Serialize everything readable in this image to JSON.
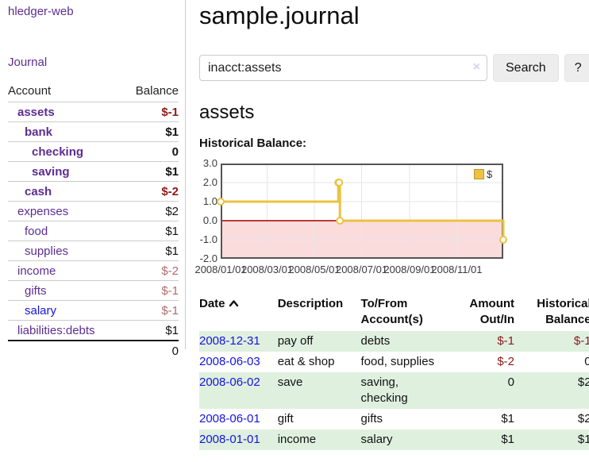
{
  "app": {
    "title": "hledger-web"
  },
  "sidebar": {
    "journal_link": "Journal",
    "accounts_table": {
      "header_account": "Account",
      "header_balance": "Balance",
      "rows": [
        {
          "label": "assets",
          "depth": 1,
          "matched": true,
          "balance": "$-1",
          "negative_strong": true
        },
        {
          "label": "bank",
          "depth": 2,
          "matched": true,
          "balance": "$1"
        },
        {
          "label": "checking",
          "depth": 3,
          "matched": true,
          "balance": "0"
        },
        {
          "label": "saving",
          "depth": 3,
          "matched": true,
          "balance": "$1"
        },
        {
          "label": "cash",
          "depth": 2,
          "matched": true,
          "balance": "$-2",
          "negative_strong": true
        },
        {
          "label": "expenses",
          "depth": 1,
          "balance": "$2"
        },
        {
          "label": "food",
          "depth": 2,
          "balance": "$1"
        },
        {
          "label": "supplies",
          "depth": 2,
          "balance": "$1"
        },
        {
          "label": "income",
          "depth": 1,
          "balance": "$-2",
          "negative_muted": true
        },
        {
          "label": "gifts",
          "depth": 2,
          "balance": "$-1",
          "negative_muted": true
        },
        {
          "label": "salary",
          "depth": 2,
          "balance": "$-1",
          "negative_muted": true,
          "link_blue": true
        },
        {
          "label": "liabilities:debts",
          "depth": 1,
          "balance": "$1"
        }
      ],
      "total": "0"
    }
  },
  "main": {
    "title": "sample.journal",
    "search": {
      "value": "inacct:assets",
      "clear_icon": "×",
      "button_label": "Search",
      "help_label": "?"
    },
    "account_heading": "assets",
    "chart_label": "Historical Balance:"
  },
  "chart_data": {
    "type": "line",
    "step": true,
    "title": "Historical Balance:",
    "ylim": [
      -2,
      3
    ],
    "x_span_days": 365,
    "yticks": [
      {
        "label": "3.0",
        "value": 3
      },
      {
        "label": "2.0",
        "value": 2
      },
      {
        "label": "1.0",
        "value": 1
      },
      {
        "label": "0.0",
        "value": 0
      },
      {
        "label": "-1.0",
        "value": -1
      },
      {
        "label": "-2.0",
        "value": -2
      }
    ],
    "xticks": [
      {
        "label": "2008/01/01",
        "day": 0
      },
      {
        "label": "2008/03/01",
        "day": 60
      },
      {
        "label": "2008/05/01",
        "day": 121
      },
      {
        "label": "2008/07/01",
        "day": 182
      },
      {
        "label": "2008/09/01",
        "day": 244
      },
      {
        "label": "2008/11/01",
        "day": 305
      }
    ],
    "series": [
      {
        "name": "$",
        "color": "#edc240",
        "points": [
          {
            "date": "2008-01-01",
            "day": 0,
            "value": 1
          },
          {
            "date": "2008-06-01",
            "day": 152,
            "value": 2
          },
          {
            "date": "2008-06-02",
            "day": 153,
            "value": 2
          },
          {
            "date": "2008-06-03",
            "day": 154,
            "value": 0
          },
          {
            "date": "2008-12-31",
            "day": 365,
            "value": -1
          }
        ]
      }
    ],
    "grid_on": true,
    "grid_color": "#e6e6e6",
    "zero_line_color": "#a40000",
    "negative_fill": "#fbdcdc",
    "plot_border_color": "#555555",
    "legend_position": "top-right"
  },
  "register": {
    "headers": {
      "date": "Date",
      "description": "Description",
      "accounts": "To/From\nAccount(s)",
      "amount": "Amount\nOut/In",
      "balance": "Historical\nBalance"
    },
    "rows": [
      {
        "date": "2008-12-31",
        "description": "pay off",
        "accounts": "debts",
        "amount": "$-1",
        "amount_negative": true,
        "balance": "$-1",
        "balance_negative": true
      },
      {
        "date": "2008-06-03",
        "description": "eat & shop",
        "accounts": "food, supplies",
        "amount": "$-2",
        "amount_negative": true,
        "balance": "0"
      },
      {
        "date": "2008-06-02",
        "description": "save",
        "accounts": "saving,\nchecking",
        "amount": "0",
        "balance": "$2"
      },
      {
        "date": "2008-06-01",
        "description": "gift",
        "accounts": "gifts",
        "amount": "$1",
        "balance": "$2"
      },
      {
        "date": "2008-01-01",
        "description": "income",
        "accounts": "salary",
        "amount": "$1",
        "balance": "$1"
      }
    ]
  }
}
